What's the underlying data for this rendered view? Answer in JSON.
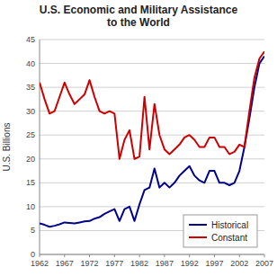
{
  "chart_data": {
    "type": "line",
    "title": "U.S. Economic and Military Assistance\nto the World",
    "y_label": "U.S. Billions",
    "x": [
      1962,
      1963,
      1964,
      1965,
      1966,
      1967,
      1968,
      1969,
      1970,
      1971,
      1972,
      1973,
      1974,
      1975,
      1976,
      1977,
      1978,
      1979,
      1980,
      1981,
      1982,
      1983,
      1984,
      1985,
      1986,
      1987,
      1988,
      1989,
      1990,
      1991,
      1992,
      1993,
      1994,
      1995,
      1996,
      1997,
      1998,
      1999,
      2000,
      2001,
      2002,
      2003,
      2004,
      2005,
      2006,
      2007
    ],
    "series": [
      {
        "name": "Historical",
        "color": "#00008B",
        "values": [
          6.5,
          6.2,
          5.8,
          6.0,
          6.3,
          6.7,
          6.6,
          6.5,
          6.7,
          6.9,
          7.0,
          7.5,
          7.8,
          8.5,
          9.0,
          9.5,
          7.0,
          9.5,
          10.0,
          7.0,
          10.5,
          13.5,
          14.0,
          18.0,
          14.0,
          15.0,
          14.0,
          15.0,
          16.5,
          17.5,
          18.5,
          16.5,
          15.5,
          15.0,
          17.5,
          17.5,
          15.0,
          15.0,
          14.5,
          15.0,
          17.5,
          22.5,
          28.5,
          35.0,
          40.0,
          41.5
        ]
      },
      {
        "name": "Constant",
        "color": "#CC0000",
        "values": [
          36.0,
          32.5,
          29.5,
          30.0,
          33.0,
          36.0,
          33.5,
          31.5,
          32.5,
          33.5,
          36.5,
          33.0,
          30.0,
          29.5,
          30.0,
          29.5,
          20.0,
          24.0,
          26.0,
          20.0,
          20.5,
          33.0,
          22.0,
          31.5,
          25.0,
          22.0,
          21.0,
          22.0,
          23.0,
          24.5,
          25.0,
          24.0,
          22.5,
          22.5,
          24.5,
          24.5,
          22.5,
          22.5,
          21.0,
          21.5,
          23.0,
          22.5,
          30.0,
          37.0,
          41.0,
          42.5
        ]
      }
    ],
    "xlim": [
      1962,
      2007
    ],
    "ylim": [
      0,
      45
    ],
    "xticks": [
      1962,
      1967,
      1972,
      1977,
      1982,
      1987,
      1992,
      1997,
      2002,
      2007
    ],
    "yticks": [
      0,
      5,
      10,
      15,
      20,
      25,
      30,
      35,
      40,
      45
    ],
    "grid": true,
    "legend": "lower right"
  }
}
